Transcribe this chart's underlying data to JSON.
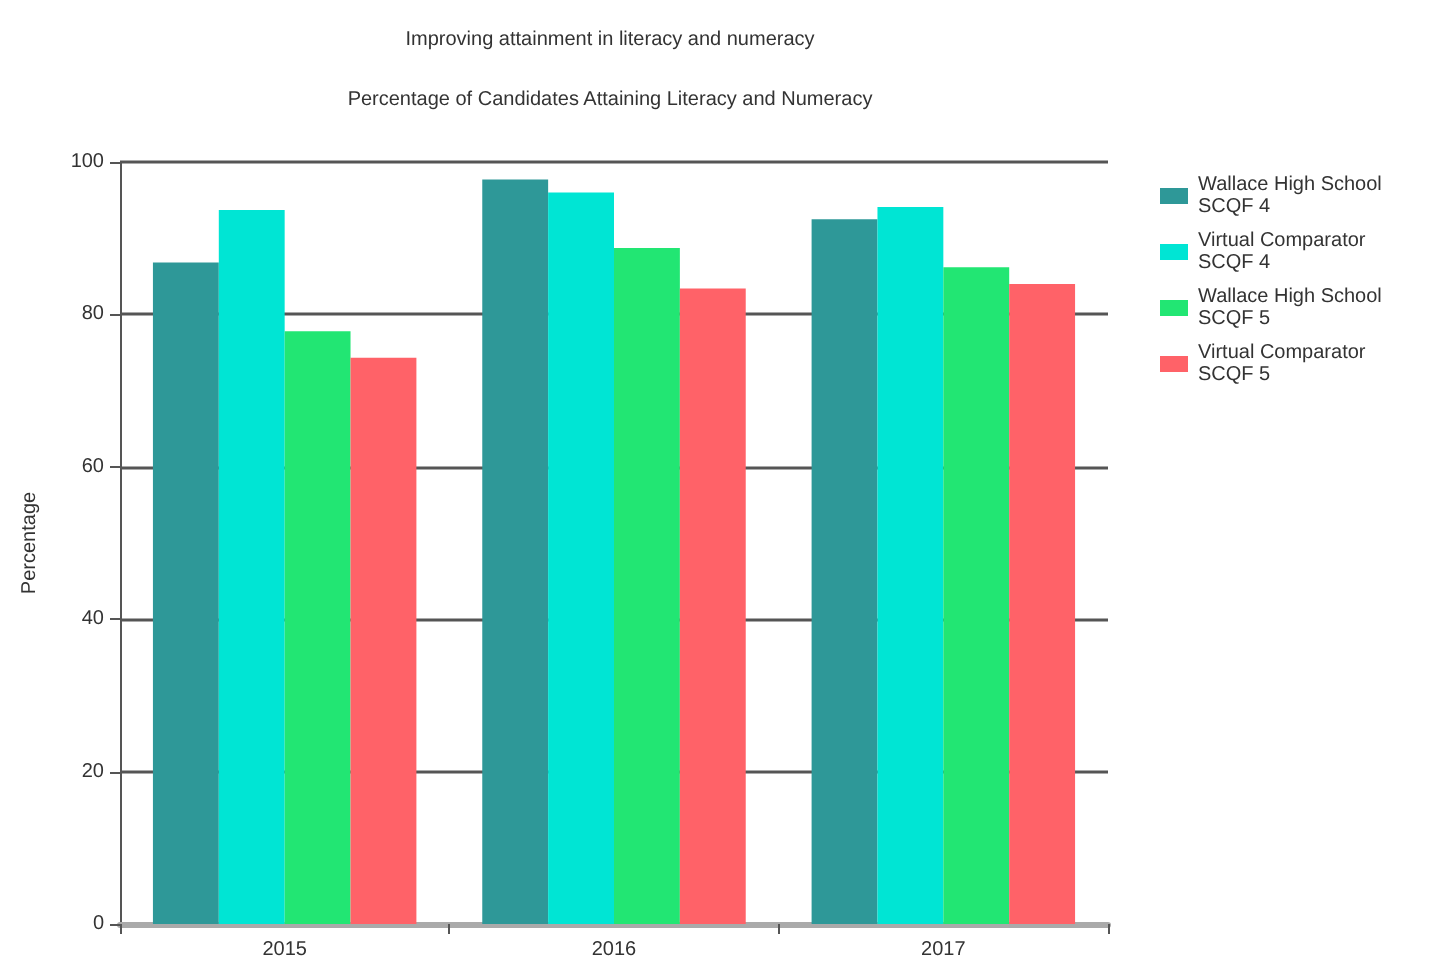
{
  "chart_data": {
    "type": "bar",
    "title": "Improving attainment in literacy and numeracy",
    "subtitle": "Percentage of Candidates Attaining Literacy and Numeracy",
    "ylabel": "Percentage",
    "categories": [
      "2015",
      "2016",
      "2017"
    ],
    "series": [
      {
        "name": "Wallace High School SCQF 4",
        "color": "#2e9898",
        "values": [
          86.8,
          97.7,
          92.5
        ]
      },
      {
        "name": "Virtual Comparator SCQF 4",
        "color": "#00e5d4",
        "values": [
          93.7,
          96.0,
          94.1
        ]
      },
      {
        "name": "Wallace High School SCQF 5",
        "color": "#22e673",
        "values": [
          77.8,
          88.7,
          86.2
        ]
      },
      {
        "name": "Virtual Comparator SCQF 5",
        "color": "#ff6268",
        "values": [
          74.3,
          83.4,
          84.0
        ]
      }
    ],
    "ylim": [
      0,
      100
    ],
    "yticks": [
      0,
      20,
      40,
      60,
      80,
      100
    ],
    "grid": "y",
    "legend": "top right"
  }
}
